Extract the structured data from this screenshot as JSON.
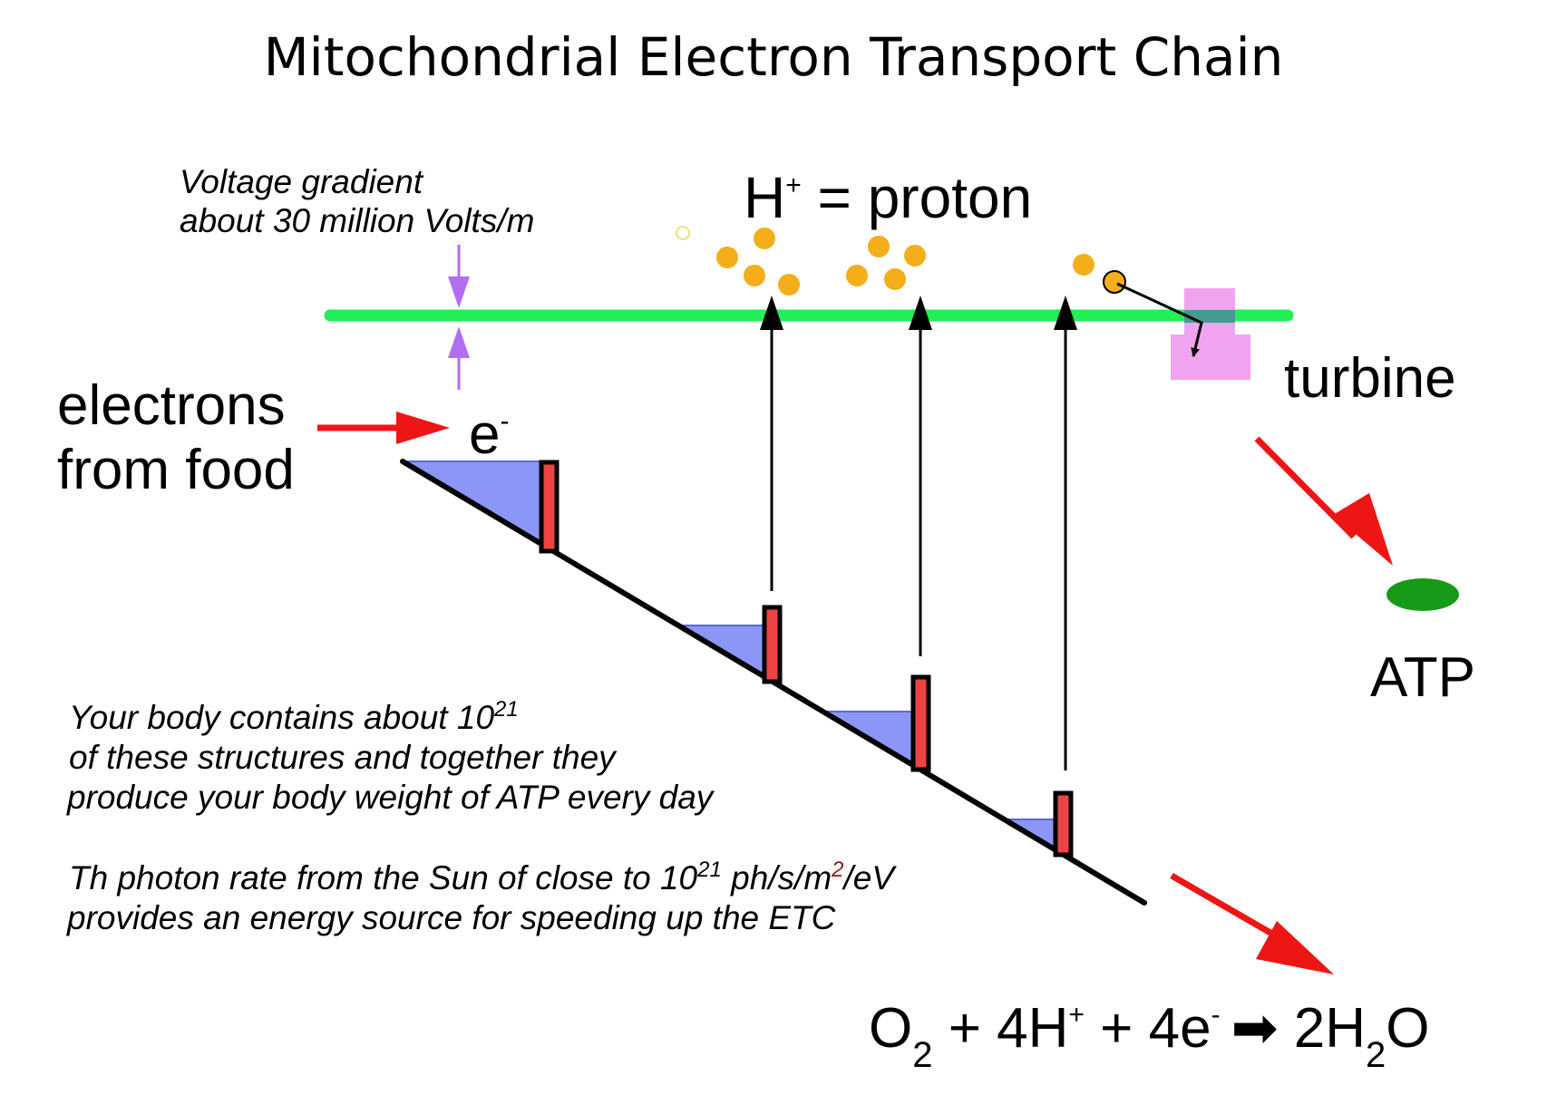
{
  "title": "Mitochondrial Electron Transport Chain",
  "voltage_note": {
    "line1": "Voltage gradient",
    "line2": "about 30 million Volts/m"
  },
  "proton_label": {
    "h": "H",
    "plus": "+",
    "rest": " = proton"
  },
  "electrons_label": {
    "line1": "electrons",
    "line2": "from food",
    "e": "e",
    "minus": "-"
  },
  "turbine_label": "turbine",
  "atp_label": "ATP",
  "body_note": {
    "line1_pre": "Your body contains about 10",
    "line1_sup": "21",
    "line2": "of these structures and together they",
    "line3": "produce your body weight of ATP every day"
  },
  "sun_note": {
    "line1_pre": "Th photon rate from the Sun of close to 10",
    "line1_sup": "21",
    "line1_mid": " ph/s/m",
    "line1_sup2": "2",
    "line1_post": "/eV",
    "line2": "provides an energy source for speeding up the ETC"
  },
  "equation": {
    "o": "O",
    "sub_o2": "2",
    "p1": " + 4H",
    "plus": "+",
    "p2": " + 4e",
    "minus": "-",
    "arrow": "➡",
    "p3": " 2H",
    "sub_h2": "2",
    "p4": "O"
  },
  "colors": {
    "membrane": "#22ee55",
    "step_fill": "#8c96f6",
    "complex_fill": "#ee4444",
    "proton": "#f3ae1a",
    "turbine": "#f0a3ee",
    "atp": "#179a17",
    "red_arrow": "#ee1515",
    "voltage_arrow": "#b26ef0"
  }
}
